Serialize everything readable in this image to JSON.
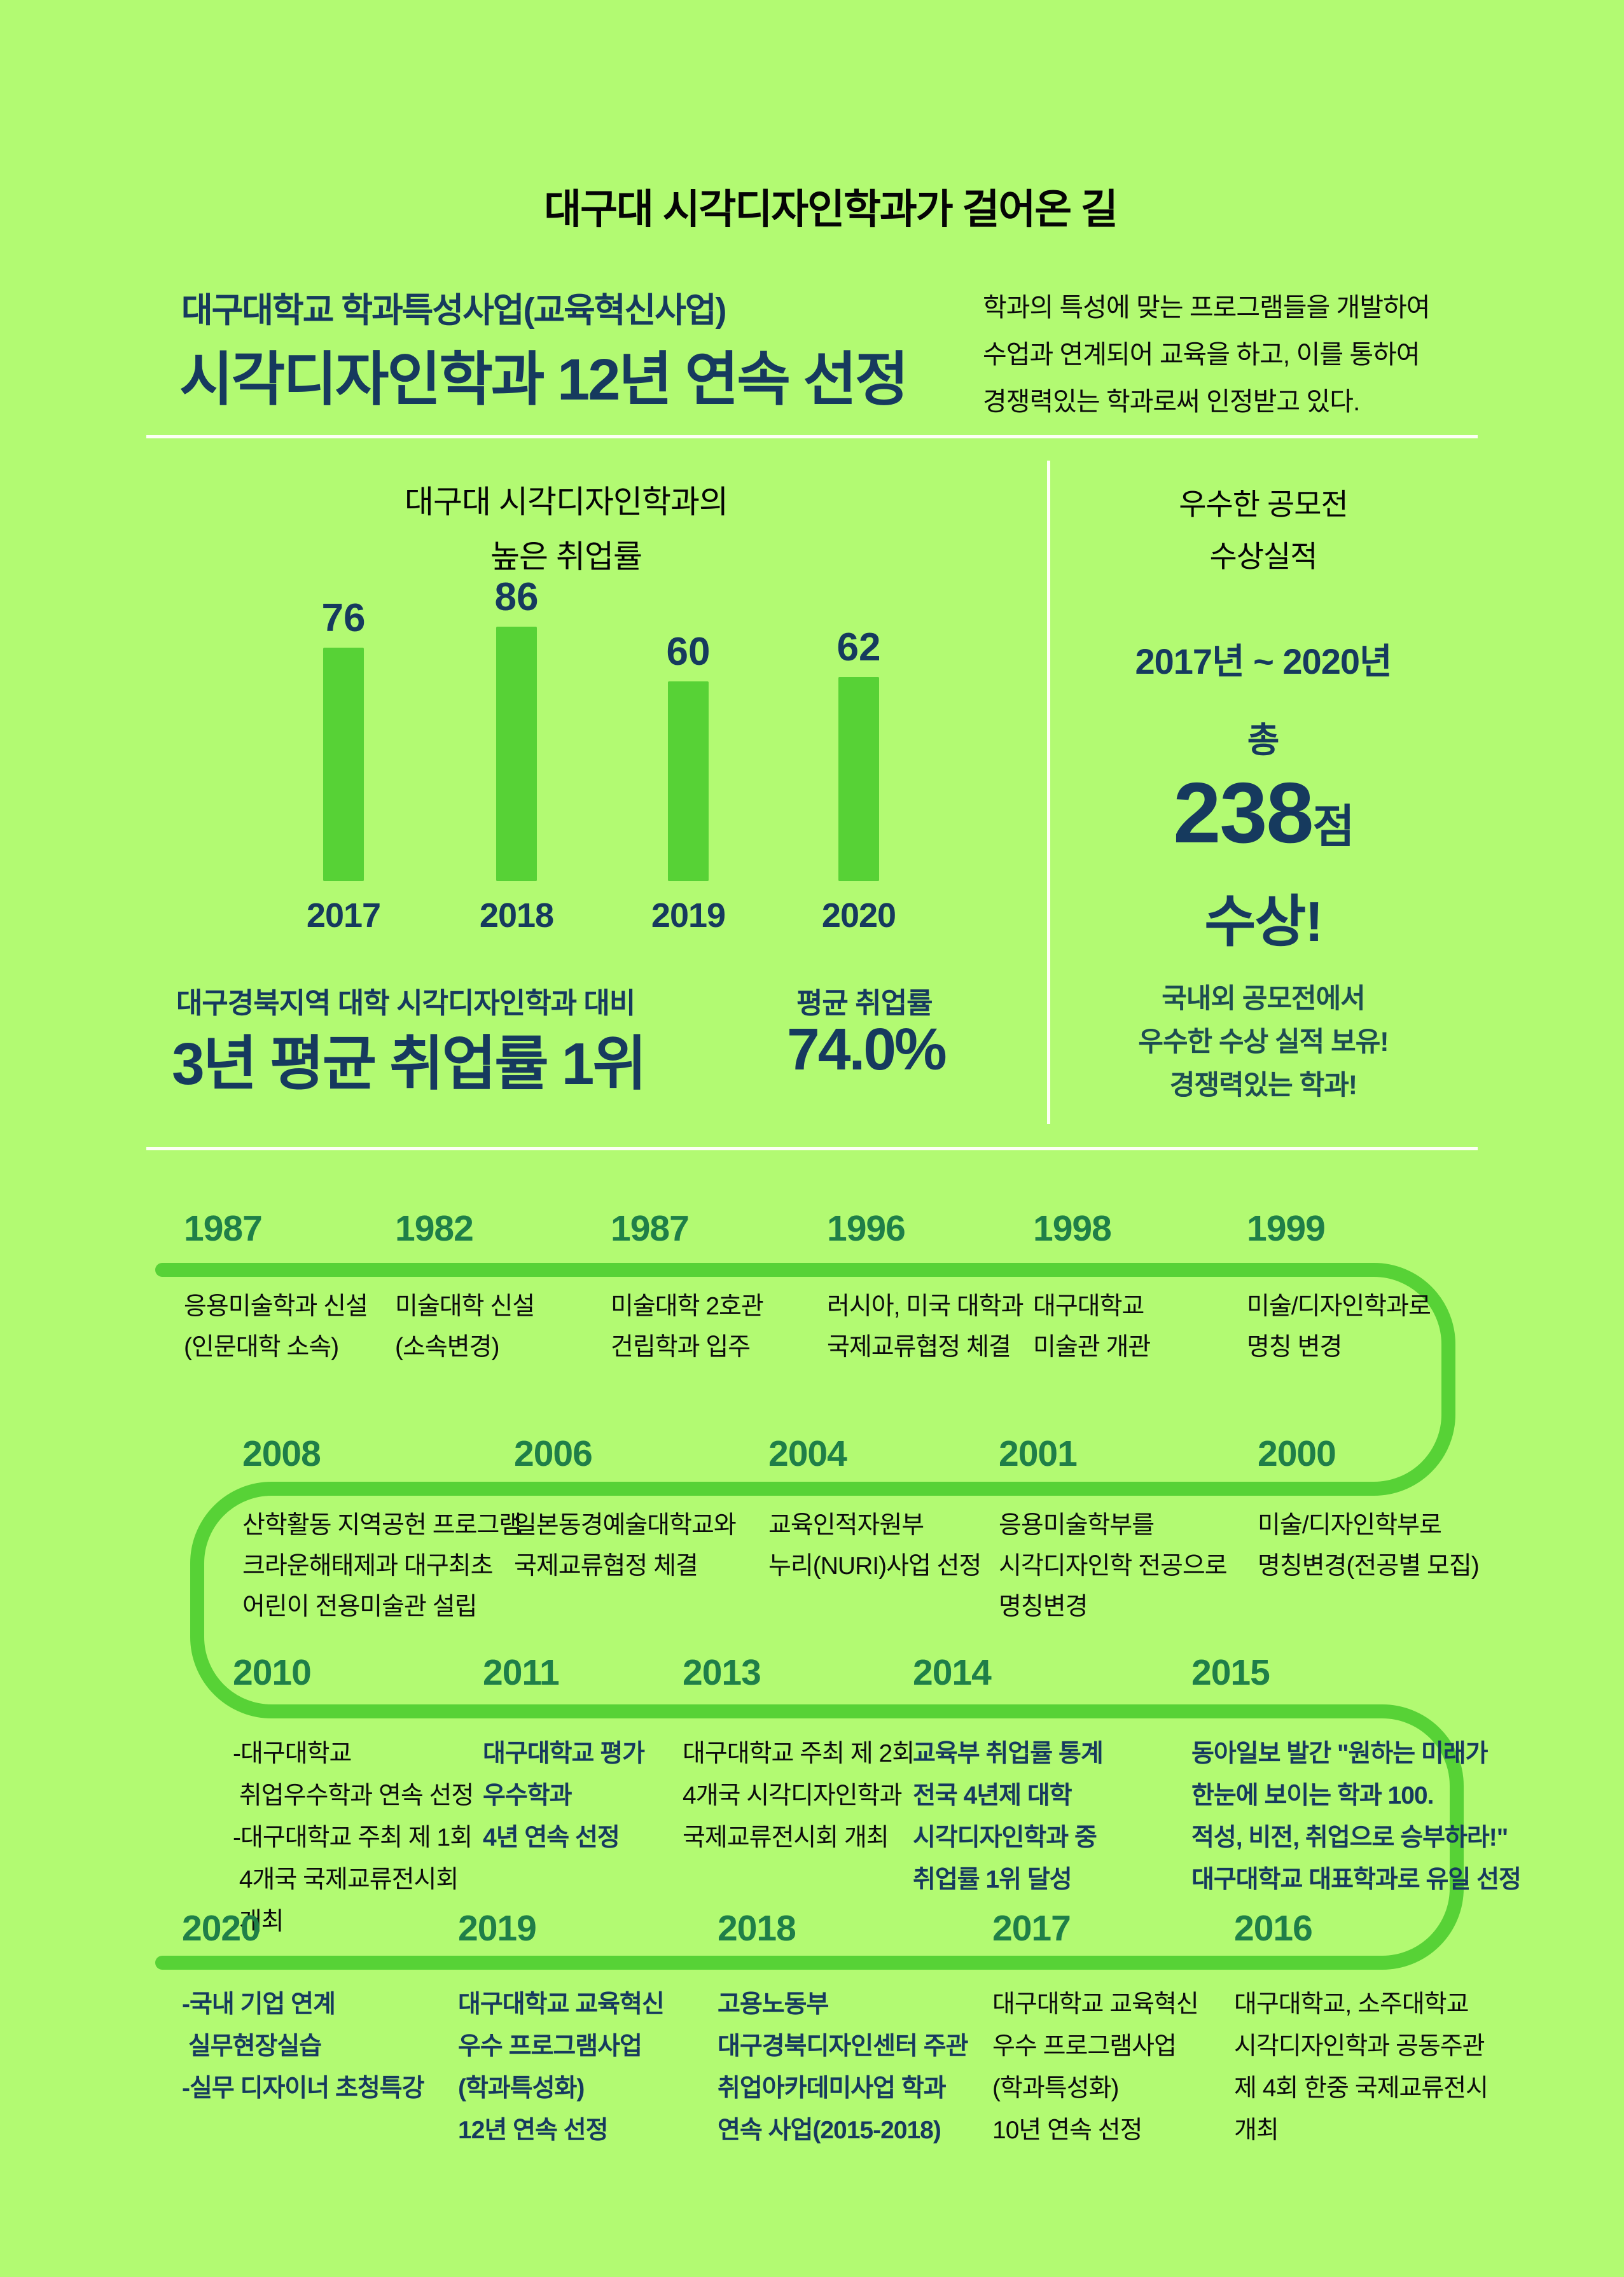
{
  "page": {
    "background": "#B2FA72",
    "accent_green": "#57D236",
    "dark_green": "#1F7F48",
    "navy": "#163A5E",
    "teal": "#1D4D52"
  },
  "title": "대구대 시각디자인학과가 걸어온 길",
  "header": {
    "line1": "대구대학교 학과특성사업(교육혁신사업)",
    "line2": "시각디자인학과 12년 연속 선정",
    "description_lines": [
      "학과의 특성에 맞는 프로그램들을 개발하여",
      "수업과 연계되어 교육을 하고, 이를 통하여",
      "경쟁력있는 학과로써 인정받고 있다."
    ]
  },
  "chart_data": {
    "type": "bar",
    "title_lines": [
      "대구대 시각디자인학과의",
      "높은 취업률"
    ],
    "categories": [
      "2017",
      "2018",
      "2019",
      "2020"
    ],
    "values": [
      76,
      86,
      60,
      62
    ],
    "xlabel": "",
    "ylabel": "",
    "grid": false,
    "legend": "none",
    "bar_color": "#57D236",
    "label_color": "#163A5E"
  },
  "stats": {
    "left_caption": "대구경북지역 대학 시각디자인학과 대비",
    "left_value": "3년 평균 취업률 1위",
    "right_caption": "평균 취업률",
    "right_value": "74.0%"
  },
  "awards": {
    "heading_lines": [
      "우수한 공모전",
      "수상실적"
    ],
    "period": "2017년 ~ 2020년",
    "total_label": "총",
    "total_value": "238",
    "total_unit": "점",
    "total_suffix": "수상!",
    "footer_lines": [
      "국내외 공모전에서",
      "우수한 수상 실적 보유!",
      "경쟁력있는 학과!"
    ]
  },
  "timeline": {
    "rows": [
      {
        "entries": [
          {
            "year": "1987",
            "lines": [
              "응용미술학과 신설",
              "(인문대학 소속)"
            ],
            "emphasis": false
          },
          {
            "year": "1982",
            "lines": [
              "미술대학 신설",
              "(소속변경)"
            ],
            "emphasis": false
          },
          {
            "year": "1987",
            "lines": [
              "미술대학 2호관",
              "건립학과 입주"
            ],
            "emphasis": false
          },
          {
            "year": "1996",
            "lines": [
              "러시아, 미국 대학과",
              "국제교류협정 체결"
            ],
            "emphasis": false
          },
          {
            "year": "1998",
            "lines": [
              "대구대학교",
              "미술관 개관"
            ],
            "emphasis": false
          },
          {
            "year": "1999",
            "lines": [
              "미술/디자인학과로",
              "명칭 변경"
            ],
            "emphasis": false
          }
        ]
      },
      {
        "entries": [
          {
            "year": "2008",
            "lines": [
              "산학활동 지역공헌 프로그램",
              "크라운해태제과 대구최초",
              "어린이 전용미술관 설립"
            ],
            "emphasis": false
          },
          {
            "year": "2006",
            "lines": [
              "일본동경예술대학교와",
              "국제교류협정 체결"
            ],
            "emphasis": false
          },
          {
            "year": "2004",
            "lines": [
              "교육인적자원부",
              "누리(NURI)사업 선정"
            ],
            "emphasis": false
          },
          {
            "year": "2001",
            "lines": [
              "응용미술학부를",
              "시각디자인학 전공으로",
              "명칭변경"
            ],
            "emphasis": false
          },
          {
            "year": "2000",
            "lines": [
              "미술/디자인학부로",
              "명칭변경(전공별 모집)"
            ],
            "emphasis": false
          }
        ]
      },
      {
        "entries": [
          {
            "year": "2010",
            "lines": [
              "-대구대학교",
              " 취업우수학과 연속 선정",
              "-대구대학교 주최 제 1회",
              " 4개국 국제교류전시회",
              " 개최"
            ],
            "emphasis": false
          },
          {
            "year": "2011",
            "lines": [
              "대구대학교 평가",
              "우수학과",
              "4년 연속 선정"
            ],
            "emphasis": true
          },
          {
            "year": "2013",
            "lines": [
              "대구대학교 주최 제 2회",
              "4개국 시각디자인학과",
              "국제교류전시회 개최"
            ],
            "emphasis": false
          },
          {
            "year": "2014",
            "lines": [
              "교육부 취업률 통계",
              "전국 4년제 대학",
              "시각디자인학과 중",
              "취업률 1위 달성"
            ],
            "emphasis": true
          },
          {
            "year": "2015",
            "lines": [
              "동아일보 발간 \"원하는 미래가",
              "한눈에 보이는 학과 100.",
              "적성, 비전, 취업으로 승부하라!\"",
              "대구대학교 대표학과로 유일 선정"
            ],
            "emphasis": true
          }
        ]
      },
      {
        "entries": [
          {
            "year": "2020",
            "lines": [
              "-국내 기업 연계",
              " 실무현장실습",
              "-실무 디자이너 초청특강"
            ],
            "emphasis": true
          },
          {
            "year": "2019",
            "lines": [
              "대구대학교 교육혁신",
              "우수 프로그램사업",
              "(학과특성화)",
              "12년 연속 선정"
            ],
            "emphasis": true
          },
          {
            "year": "2018",
            "lines": [
              "고용노동부",
              "대구경북디자인센터 주관",
              "취업아카데미사업 학과",
              "연속 사업(2015-2018)"
            ],
            "emphasis": true
          },
          {
            "year": "2017",
            "lines": [
              "대구대학교 교육혁신",
              "우수 프로그램사업",
              "(학과특성화)",
              "10년 연속 선정"
            ],
            "emphasis": false
          },
          {
            "year": "2016",
            "lines": [
              "대구대학교, 소주대학교",
              "시각디자인학과 공동주관",
              "제 4회 한중 국제교류전시",
              "개최"
            ],
            "emphasis": false
          }
        ]
      }
    ]
  }
}
